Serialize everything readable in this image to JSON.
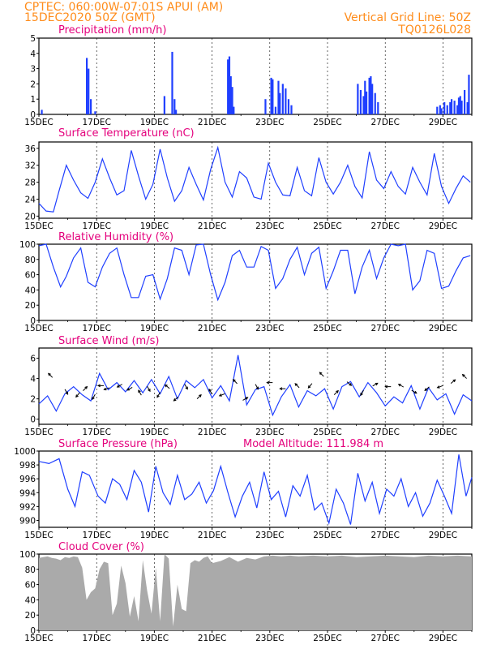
{
  "header": {
    "line1_left": "CPTEC:   060:00W-07:01S   APUI (AM)",
    "line2_left": "15DEC2020 50Z (GMT)",
    "line1_right": "Vertical Grid Line: 50Z",
    "line2_right": "TQ0126L028"
  },
  "colors": {
    "header": "#ff8c1a",
    "title": "#e4007c",
    "line": "#1f3fff",
    "cloud": "#aaaaaa",
    "arrow": "#000000"
  },
  "chart_data": [
    {
      "type": "bar",
      "title": "Precipitation (mm/h)",
      "ylim": [
        0,
        5
      ],
      "yticks": [
        0,
        1,
        2,
        3,
        4,
        5
      ],
      "xticks": [
        "15DEC",
        "17DEC",
        "19DEC",
        "21DEC",
        "23DEC",
        "25DEC",
        "27DEC",
        "29DEC"
      ],
      "x": [
        0.1,
        1.66,
        1.72,
        1.8,
        1.95,
        4.35,
        4.62,
        4.7,
        4.75,
        6.55,
        6.6,
        6.65,
        6.7,
        6.75,
        7.85,
        8.05,
        8.1,
        8.2,
        8.3,
        8.35,
        8.45,
        8.55,
        8.65,
        8.75,
        11.05,
        11.15,
        11.25,
        11.3,
        11.35,
        11.45,
        11.5,
        11.55,
        11.65,
        11.75,
        13.8,
        13.9,
        13.95,
        14.05,
        14.15,
        14.25,
        14.3,
        14.4,
        14.5,
        14.55,
        14.6,
        14.65,
        14.75,
        14.85,
        14.9
      ],
      "values": [
        0.3,
        3.7,
        3.0,
        1.0,
        0.2,
        1.2,
        4.1,
        1.0,
        0.3,
        3.6,
        3.8,
        2.5,
        1.8,
        0.5,
        1.0,
        2.4,
        2.3,
        0.5,
        2.2,
        1.4,
        2.0,
        1.7,
        1.0,
        0.6,
        2.0,
        1.6,
        1.2,
        2.2,
        1.5,
        2.4,
        2.5,
        2.0,
        1.4,
        0.8,
        0.5,
        0.6,
        0.4,
        0.8,
        0.6,
        0.8,
        1.0,
        0.9,
        0.6,
        1.1,
        1.2,
        0.9,
        1.6,
        0.8,
        2.6
      ]
    },
    {
      "type": "line",
      "title": "Surface Temperature (nC)",
      "ylim": [
        19.5,
        37.5
      ],
      "yticks": [
        20,
        24,
        28,
        32,
        36
      ],
      "xticks": [
        "15DEC",
        "17DEC",
        "19DEC",
        "21DEC",
        "23DEC",
        "25DEC",
        "27DEC",
        "29DEC"
      ],
      "x": [
        0,
        0.25,
        0.5,
        0.7,
        0.95,
        1.2,
        1.45,
        1.7,
        1.95,
        2.2,
        2.45,
        2.7,
        2.95,
        3.2,
        3.45,
        3.7,
        3.95,
        4.2,
        4.45,
        4.7,
        4.95,
        5.2,
        5.45,
        5.7,
        5.95,
        6.2,
        6.45,
        6.7,
        6.95,
        7.2,
        7.45,
        7.7,
        7.95,
        8.2,
        8.45,
        8.7,
        8.95,
        9.2,
        9.45,
        9.7,
        9.95,
        10.2,
        10.45,
        10.7,
        10.95,
        11.2,
        11.45,
        11.7,
        11.95,
        12.2,
        12.45,
        12.7,
        12.95,
        13.2,
        13.45,
        13.7,
        13.95,
        14.2,
        14.45,
        14.7,
        14.95
      ],
      "values": [
        23.0,
        21.2,
        21.0,
        26.0,
        32.0,
        28.5,
        25.5,
        24.2,
        28.0,
        33.5,
        29.0,
        25.0,
        26.0,
        35.5,
        29.5,
        24.0,
        27.5,
        35.8,
        29.0,
        23.5,
        26.0,
        31.5,
        27.5,
        23.8,
        31.0,
        36.2,
        28.0,
        24.5,
        30.5,
        29.0,
        24.5,
        24.0,
        32.5,
        28.0,
        25.0,
        24.8,
        31.5,
        26.0,
        24.8,
        33.8,
        28.0,
        25.2,
        28.0,
        32.0,
        27.0,
        24.3,
        35.2,
        28.5,
        26.5,
        30.5,
        27.0,
        25.2,
        31.5,
        28.0,
        25.0,
        34.8,
        27.0,
        23.0,
        26.5,
        29.5,
        28.0
      ]
    },
    {
      "type": "line",
      "title": "Relative Humidity (%)",
      "ylim": [
        0,
        100
      ],
      "yticks": [
        0,
        20,
        40,
        60,
        80,
        100
      ],
      "xticks": [
        "15DEC",
        "17DEC",
        "19DEC",
        "21DEC",
        "23DEC",
        "25DEC",
        "27DEC",
        "29DEC"
      ],
      "x": [
        0,
        0.25,
        0.5,
        0.75,
        0.95,
        1.2,
        1.45,
        1.7,
        1.95,
        2.2,
        2.45,
        2.7,
        2.95,
        3.2,
        3.45,
        3.7,
        3.95,
        4.2,
        4.45,
        4.7,
        4.95,
        5.2,
        5.45,
        5.7,
        5.95,
        6.2,
        6.45,
        6.7,
        6.95,
        7.2,
        7.45,
        7.7,
        7.95,
        8.2,
        8.45,
        8.7,
        8.95,
        9.2,
        9.45,
        9.7,
        9.95,
        10.2,
        10.45,
        10.7,
        10.95,
        11.2,
        11.45,
        11.7,
        11.95,
        12.2,
        12.45,
        12.7,
        12.95,
        13.2,
        13.45,
        13.7,
        13.95,
        14.2,
        14.45,
        14.7,
        14.95
      ],
      "values": [
        98,
        100,
        70,
        44,
        58,
        82,
        95,
        50,
        44,
        70,
        88,
        95,
        60,
        30,
        30,
        58,
        60,
        28,
        55,
        95,
        92,
        60,
        99,
        100,
        60,
        27,
        50,
        85,
        92,
        70,
        70,
        97,
        92,
        42,
        55,
        80,
        96,
        60,
        88,
        96,
        42,
        65,
        92,
        92,
        35,
        70,
        92,
        55,
        82,
        100,
        98,
        100,
        40,
        52,
        92,
        88,
        42,
        45,
        65,
        82,
        85
      ]
    },
    {
      "type": "line",
      "title": "Surface Wind (m/s)",
      "ylim": [
        -0.5,
        7
      ],
      "yticks": [
        0,
        2,
        4,
        6
      ],
      "xticks": [
        "15DEC",
        "17DEC",
        "19DEC",
        "21DEC",
        "23DEC",
        "25DEC",
        "27DEC",
        "29DEC"
      ],
      "x": [
        0,
        0.3,
        0.6,
        0.9,
        1.2,
        1.5,
        1.8,
        2.1,
        2.4,
        2.7,
        3.0,
        3.3,
        3.6,
        3.9,
        4.2,
        4.5,
        4.8,
        5.1,
        5.4,
        5.7,
        6.0,
        6.3,
        6.6,
        6.9,
        7.2,
        7.5,
        7.8,
        8.1,
        8.4,
        8.7,
        9.0,
        9.3,
        9.6,
        9.9,
        10.2,
        10.5,
        10.8,
        11.1,
        11.4,
        11.7,
        12.0,
        12.3,
        12.6,
        12.9,
        13.2,
        13.5,
        13.8,
        14.1,
        14.4,
        14.7,
        15.0
      ],
      "values": [
        1.5,
        2.3,
        0.8,
        2.5,
        3.2,
        2.4,
        1.8,
        4.5,
        2.9,
        3.6,
        2.7,
        3.8,
        2.6,
        3.9,
        2.5,
        4.2,
        2.0,
        3.8,
        3.1,
        3.9,
        2.1,
        3.3,
        1.8,
        6.3,
        1.4,
        2.9,
        3.2,
        0.4,
        2.2,
        3.4,
        1.2,
        2.8,
        2.3,
        3.0,
        1.0,
        3.2,
        3.7,
        2.2,
        3.6,
        2.6,
        1.3,
        2.2,
        1.6,
        3.3,
        1.0,
        3.1,
        1.9,
        2.5,
        0.5,
        2.4,
        1.8
      ],
      "arrows_x": [
        0.4,
        0.95,
        1.35,
        1.6,
        1.9,
        2.15,
        2.35,
        2.8,
        3.15,
        3.5,
        3.8,
        4.15,
        4.45,
        4.75,
        5.1,
        5.55,
        5.95,
        6.35,
        6.8,
        7.15,
        7.55,
        8.0,
        8.45,
        8.95,
        9.4,
        9.8,
        10.3,
        10.75,
        11.2,
        11.65,
        12.1,
        12.55,
        13.0,
        13.45,
        13.9,
        14.35,
        14.75
      ],
      "arrows_y": [
        4.3,
        2.7,
        2.4,
        3.0,
        2.2,
        3.3,
        3.0,
        3.3,
        3.0,
        2.6,
        3.0,
        2.4,
        3.2,
        2.0,
        3.2,
        2.2,
        2.7,
        2.4,
        3.7,
        2.0,
        3.2,
        3.6,
        3.0,
        3.3,
        3.3,
        4.4,
        2.6,
        3.5,
        2.6,
        3.4,
        3.2,
        3.3,
        2.7,
        3.0,
        3.2,
        3.7,
        4.2
      ],
      "arrows_dir": [
        135,
        300,
        230,
        45,
        240,
        180,
        200,
        210,
        210,
        120,
        300,
        240,
        140,
        220,
        300,
        45,
        120,
        200,
        135,
        30,
        300,
        180,
        180,
        135,
        230,
        135,
        45,
        320,
        240,
        30,
        180,
        150,
        330,
        220,
        200,
        40,
        135
      ]
    },
    {
      "type": "line",
      "title": "Surface Pressure (hPa)",
      "annotation": "Model Altitude: 111.984 m",
      "ylim": [
        989,
        1000
      ],
      "yticks": [
        990,
        992,
        994,
        996,
        998,
        1000
      ],
      "xticks": [
        "15DEC",
        "17DEC",
        "19DEC",
        "21DEC",
        "23DEC",
        "25DEC",
        "27DEC",
        "29DEC"
      ],
      "x": [
        0,
        0.35,
        0.7,
        1.0,
        1.25,
        1.5,
        1.75,
        2.05,
        2.3,
        2.55,
        2.8,
        3.05,
        3.3,
        3.55,
        3.8,
        4.05,
        4.3,
        4.55,
        4.8,
        5.05,
        5.3,
        5.55,
        5.8,
        6.05,
        6.3,
        6.55,
        6.8,
        7.05,
        7.3,
        7.55,
        7.8,
        8.05,
        8.3,
        8.55,
        8.8,
        9.05,
        9.3,
        9.55,
        9.8,
        10.05,
        10.3,
        10.55,
        10.8,
        11.05,
        11.3,
        11.55,
        11.8,
        12.05,
        12.3,
        12.55,
        12.8,
        13.05,
        13.3,
        13.55,
        13.8,
        14.05,
        14.3,
        14.55,
        14.8,
        15.0
      ],
      "values": [
        998.5,
        998.2,
        998.9,
        994.5,
        992.0,
        997.0,
        996.5,
        993.5,
        992.5,
        996.0,
        995.2,
        993.0,
        997.2,
        995.5,
        991.2,
        997.8,
        994.0,
        992.3,
        996.5,
        993.0,
        993.8,
        995.5,
        992.5,
        994.3,
        997.8,
        994.0,
        990.5,
        993.5,
        995.5,
        991.8,
        997.0,
        993.0,
        994.2,
        990.5,
        995.0,
        993.5,
        996.5,
        991.5,
        992.5,
        989.6,
        994.5,
        992.5,
        989.4,
        996.8,
        992.8,
        995.5,
        991.0,
        994.5,
        993.5,
        996.0,
        992.0,
        994.0,
        990.6,
        992.5,
        995.8,
        993.5,
        991.0,
        999.5,
        993.5,
        996.2
      ]
    },
    {
      "type": "area",
      "title": "Cloud Cover (%)",
      "ylim": [
        0,
        100
      ],
      "yticks": [
        0,
        20,
        40,
        60,
        80,
        100
      ],
      "xticks": [
        "15DEC",
        "17DEC",
        "19DEC",
        "21DEC",
        "23DEC",
        "25DEC",
        "27DEC",
        "29DEC"
      ],
      "x": [
        0,
        0.15,
        0.3,
        0.45,
        0.6,
        0.75,
        0.9,
        1.05,
        1.2,
        1.35,
        1.5,
        1.65,
        1.8,
        1.95,
        2.1,
        2.25,
        2.4,
        2.55,
        2.7,
        2.85,
        3.0,
        3.15,
        3.3,
        3.45,
        3.6,
        3.75,
        3.9,
        4.05,
        4.2,
        4.35,
        4.5,
        4.65,
        4.8,
        4.95,
        5.1,
        5.25,
        5.4,
        5.55,
        5.7,
        5.85,
        6.0,
        6.3,
        6.6,
        6.9,
        7.2,
        7.5,
        7.8,
        8.1,
        8.4,
        8.7,
        9.0,
        9.5,
        10.0,
        10.5,
        11.0,
        11.5,
        12.0,
        12.5,
        13.0,
        13.5,
        14.0,
        14.5,
        15.0
      ],
      "values": [
        95,
        96,
        97,
        95,
        94,
        92,
        96,
        95,
        97,
        96,
        82,
        40,
        50,
        55,
        80,
        90,
        88,
        20,
        35,
        85,
        62,
        18,
        45,
        12,
        92,
        52,
        22,
        82,
        12,
        100,
        94,
        5,
        60,
        28,
        25,
        88,
        92,
        90,
        95,
        97,
        88,
        91,
        96,
        90,
        95,
        93,
        97,
        98,
        97,
        98,
        97,
        98,
        97,
        98,
        96,
        97,
        98,
        97,
        96,
        98,
        97,
        98,
        97
      ]
    }
  ]
}
